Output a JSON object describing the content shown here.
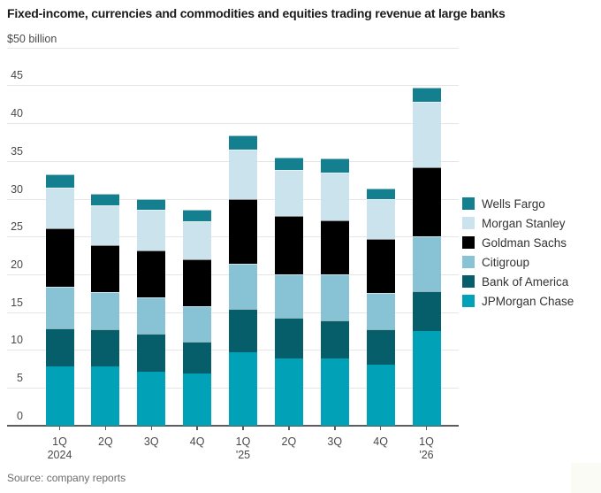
{
  "title": "Fixed-income, currencies and commodities and equities trading revenue at large banks",
  "source": "Source: company reports",
  "corner_badge_color": "#fbfbf6",
  "chart_data": {
    "type": "bar",
    "stacked": true,
    "title": "Fixed-income, currencies and commodities and equities trading revenue at large banks",
    "unit_label": "$50 billion",
    "ylabel": "$ billion",
    "ylim": [
      0,
      50
    ],
    "yticks": [
      0,
      5,
      10,
      15,
      20,
      25,
      30,
      35,
      40,
      45,
      50
    ],
    "grid": true,
    "legend_position": "right",
    "categories": [
      {
        "label": "1Q",
        "sub": "2024"
      },
      {
        "label": "2Q",
        "sub": ""
      },
      {
        "label": "3Q",
        "sub": ""
      },
      {
        "label": "4Q",
        "sub": ""
      },
      {
        "label": "1Q",
        "sub": "'25"
      },
      {
        "label": "2Q",
        "sub": ""
      },
      {
        "label": "3Q",
        "sub": ""
      },
      {
        "label": "4Q",
        "sub": ""
      },
      {
        "label": "1Q",
        "sub": "'26"
      }
    ],
    "series": [
      {
        "name": "JPMorgan Chase",
        "color": "#01a2b8",
        "values": [
          7.8,
          7.8,
          7.1,
          6.9,
          9.7,
          8.9,
          8.9,
          8.1,
          12.5
        ]
      },
      {
        "name": "Bank of America",
        "color": "#055e69",
        "values": [
          5.1,
          4.9,
          5.0,
          4.2,
          5.7,
          5.4,
          5.0,
          4.6,
          5.3
        ]
      },
      {
        "name": "Citigroup",
        "color": "#87c3d4",
        "values": [
          5.5,
          4.9,
          4.9,
          4.7,
          6.0,
          5.7,
          6.1,
          4.8,
          7.2
        ]
      },
      {
        "name": "Goldman Sachs",
        "color": "#000000",
        "values": [
          7.7,
          6.3,
          6.2,
          6.2,
          8.6,
          7.7,
          7.1,
          7.2,
          9.2
        ]
      },
      {
        "name": "Morgan Stanley",
        "color": "#cae3ed",
        "values": [
          5.4,
          5.2,
          5.3,
          5.0,
          6.5,
          6.1,
          6.4,
          5.3,
          8.6
        ]
      },
      {
        "name": "Wells Fargo",
        "color": "#14808f",
        "values": [
          1.7,
          1.6,
          1.4,
          1.6,
          1.9,
          1.6,
          1.8,
          1.4,
          1.9
        ]
      }
    ],
    "legend": [
      "Wells Fargo",
      "Morgan Stanley",
      "Goldman Sachs",
      "Citigroup",
      "Bank of America",
      "JPMorgan Chase"
    ],
    "totals": [
      33.2,
      30.7,
      29.9,
      28.6,
      38.4,
      35.4,
      35.3,
      31.4,
      44.7
    ]
  }
}
